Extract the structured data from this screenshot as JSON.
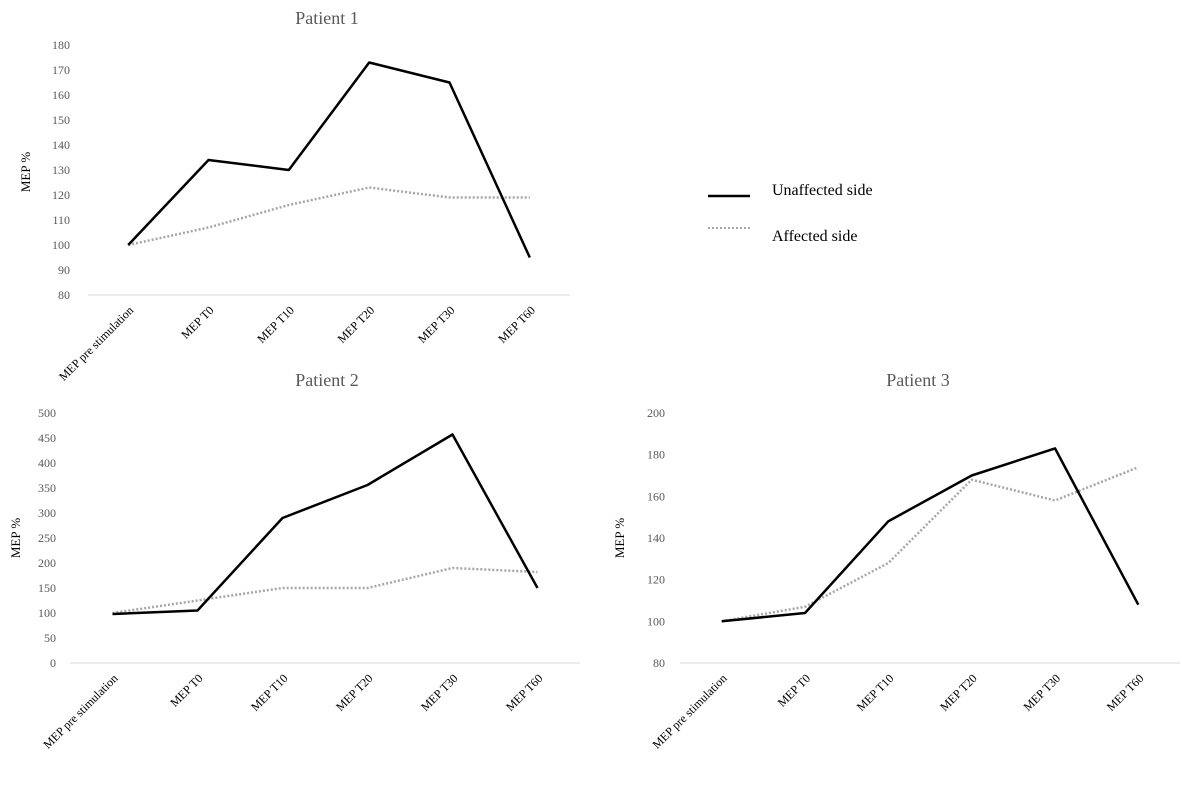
{
  "legend": {
    "unaffected_label": "Unaffected  side",
    "affected_label": "Affected side"
  },
  "colors": {
    "unaffected": "#000000",
    "affected": "#a6a6a6",
    "axis": "#d9d9d9",
    "text": "#595959"
  },
  "chart_data": [
    {
      "type": "line",
      "title": "Patient  1",
      "ylabel": "MEP %",
      "categories": [
        "MEP pre stimulation",
        "MEP T0",
        "MEP T10",
        "MEP T20",
        "MEP T30",
        "MEP T60"
      ],
      "ylim": [
        80,
        180
      ],
      "yticks": [
        80,
        90,
        100,
        110,
        120,
        130,
        140,
        150,
        160,
        170,
        180
      ],
      "series": [
        {
          "name": "Unaffected  side",
          "values": [
            100,
            134,
            130,
            173,
            165,
            95
          ]
        },
        {
          "name": "Affected side",
          "values": [
            100,
            107,
            116,
            123,
            119,
            119
          ]
        }
      ]
    },
    {
      "type": "line",
      "title": "Patient  2",
      "ylabel": "MEP %",
      "categories": [
        "MEP pre stimulation",
        "MEP T0",
        "MEP T10",
        "MEP T20",
        "MEP T30",
        "MEP T60"
      ],
      "ylim": [
        0,
        500
      ],
      "yticks": [
        0,
        50,
        100,
        150,
        200,
        250,
        300,
        350,
        400,
        450,
        500
      ],
      "series": [
        {
          "name": "Unaffected  side",
          "values": [
            98,
            105,
            290,
            356,
            457,
            150
          ]
        },
        {
          "name": "Affected side",
          "values": [
            100,
            125,
            150,
            150,
            190,
            182
          ]
        }
      ]
    },
    {
      "type": "line",
      "title": "Patient  3",
      "ylabel": "MEP %",
      "categories": [
        "MEP pre stimulation",
        "MEP T0",
        "MEP T10",
        "MEP T20",
        "MEP T30",
        "MEP T60"
      ],
      "ylim": [
        80,
        200
      ],
      "yticks": [
        80,
        100,
        120,
        140,
        160,
        180,
        200
      ],
      "series": [
        {
          "name": "Unaffected  side",
          "values": [
            100,
            104,
            148,
            170,
            183,
            108
          ]
        },
        {
          "name": "Affected side",
          "values": [
            100,
            107,
            128,
            168,
            158,
            174
          ]
        }
      ]
    }
  ]
}
